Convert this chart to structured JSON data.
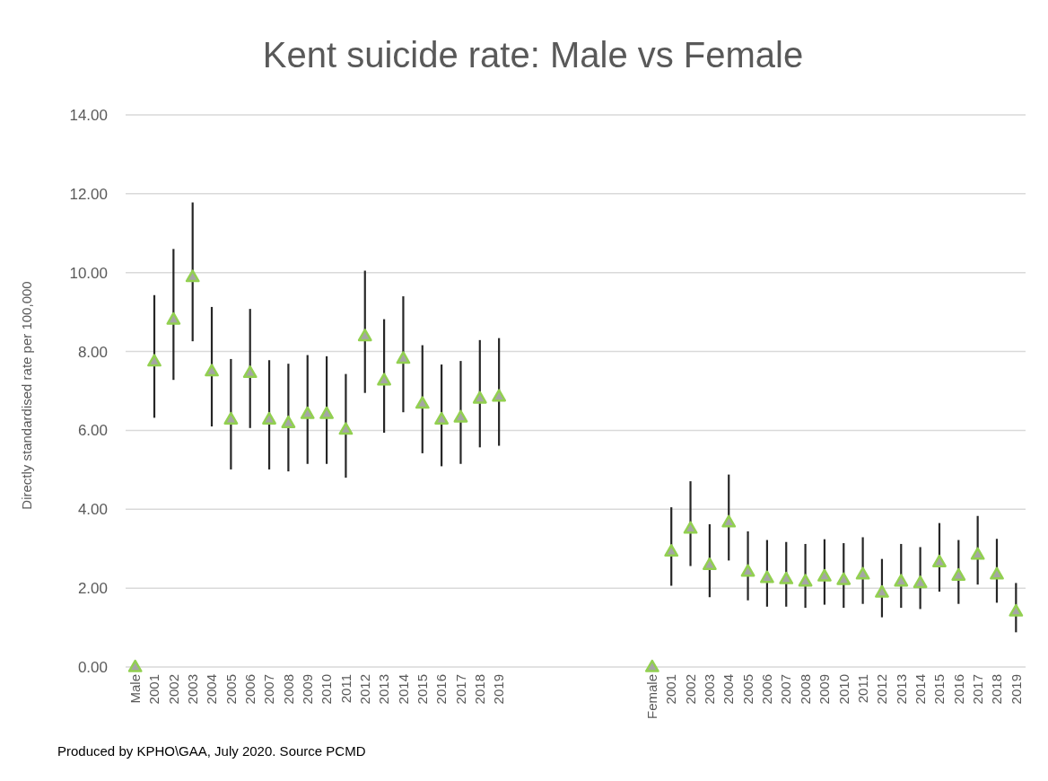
{
  "chart_data": {
    "type": "scatter",
    "title": "Kent suicide rate: Male vs Female",
    "ylabel": "Directly standardised rate per 100,000",
    "annotations": [
      "Produced by KPHO\\GAA, July 2020. Source PCMD"
    ],
    "categories": [
      "Male",
      "2001",
      "2002",
      "2003",
      "2004",
      "2005",
      "2006",
      "2007",
      "2008",
      "2009",
      "2010",
      "2011",
      "2012",
      "2013",
      "2014",
      "2015",
      "2016",
      "2017",
      "2018",
      "2019",
      null,
      null,
      null,
      null,
      null,
      null,
      null,
      "Female",
      "2001",
      "2002",
      "2003",
      "2004",
      "2005",
      "2006",
      "2007",
      "2008",
      "2009",
      "2010",
      "2011",
      "2012",
      "2013",
      "2014",
      "2015",
      "2016",
      "2017",
      "2018",
      "2019"
    ],
    "series": [
      {
        "color": "#92d050",
        "values": [
          0,
          7.75,
          8.81,
          9.89,
          7.5,
          6.28,
          7.46,
          6.28,
          6.19,
          6.42,
          6.42,
          6.02,
          8.39,
          7.27,
          7.82,
          6.68,
          6.28,
          6.33,
          6.81,
          6.86,
          null,
          null,
          null,
          null,
          null,
          null,
          null,
          0,
          2.93,
          3.51,
          2.59,
          3.67,
          2.42,
          2.26,
          2.23,
          2.17,
          2.3,
          2.21,
          2.35,
          1.89,
          2.17,
          2.13,
          2.66,
          2.32,
          2.85,
          2.35,
          1.41
        ],
        "errors": [
          null,
          [
            6.32,
            9.43
          ],
          [
            7.28,
            10.6
          ],
          [
            8.26,
            11.78
          ],
          [
            6.1,
            9.13
          ],
          [
            5.01,
            7.81
          ],
          [
            6.06,
            9.08
          ],
          [
            5.01,
            7.78
          ],
          [
            4.96,
            7.69
          ],
          [
            5.15,
            7.91
          ],
          [
            5.15,
            7.88
          ],
          [
            4.8,
            7.43
          ],
          [
            6.95,
            10.05
          ],
          [
            5.94,
            8.82
          ],
          [
            6.46,
            9.4
          ],
          [
            5.42,
            8.16
          ],
          [
            5.09,
            7.67
          ],
          [
            5.15,
            7.76
          ],
          [
            5.57,
            8.29
          ],
          [
            5.61,
            8.34
          ],
          null,
          null,
          null,
          null,
          null,
          null,
          null,
          null,
          [
            2.06,
            4.05
          ],
          [
            2.56,
            4.71
          ],
          [
            1.77,
            3.62
          ],
          [
            2.7,
            4.88
          ],
          [
            1.69,
            3.44
          ],
          [
            1.53,
            3.22
          ],
          [
            1.53,
            3.17
          ],
          [
            1.5,
            3.12
          ],
          [
            1.58,
            3.24
          ],
          [
            1.5,
            3.14
          ],
          [
            1.6,
            3.29
          ],
          [
            1.26,
            2.74
          ],
          [
            1.5,
            3.12
          ],
          [
            1.47,
            3.04
          ],
          [
            1.91,
            3.65
          ],
          [
            1.6,
            3.22
          ],
          [
            2.09,
            3.83
          ],
          [
            1.63,
            3.25
          ],
          [
            0.88,
            2.13
          ]
        ]
      }
    ],
    "ylim": [
      0,
      14
    ],
    "yticks": [
      {
        "value": 0,
        "label": "0.00"
      },
      {
        "value": 2,
        "label": "2.00"
      },
      {
        "value": 4,
        "label": "4.00"
      },
      {
        "value": 6,
        "label": "6.00"
      },
      {
        "value": 8,
        "label": "8.00"
      },
      {
        "value": 10,
        "label": "10.00"
      },
      {
        "value": 12,
        "label": "12.00"
      },
      {
        "value": 14,
        "label": "14.00"
      }
    ],
    "grid": "y",
    "marker": "triangle"
  }
}
